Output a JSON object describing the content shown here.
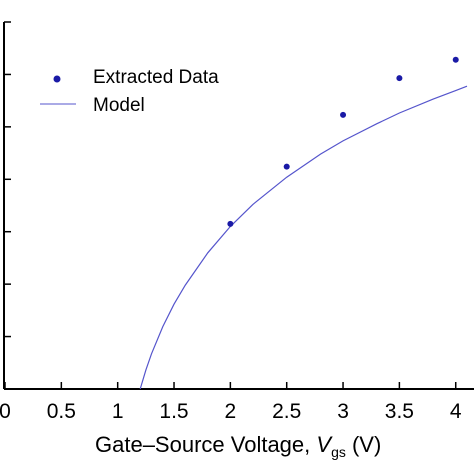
{
  "chart_data": {
    "type": "scatter",
    "title": "",
    "xlabel": {
      "prefix": "Gate–Source Voltage, ",
      "symbol": "V",
      "subscript": "gs",
      "unit": " (V)"
    },
    "ylabel": "",
    "xlim": [
      0,
      4.1
    ],
    "ylim": [
      0,
      1.0
    ],
    "x_ticks": [
      "0",
      "0.5",
      "1",
      "1.5",
      "2",
      "2.5",
      "3",
      "3.5",
      "4"
    ],
    "y_tick_values": [
      0.0,
      0.1429,
      0.2857,
      0.4286,
      0.5714,
      0.7143,
      0.8571,
      1.0
    ],
    "grid": false,
    "legend_position": "top-left",
    "series": [
      {
        "name": "Extracted Data",
        "kind": "scatter",
        "color": "#1a1aa6",
        "x": [
          2.0,
          2.5,
          3.0,
          3.5,
          4.0
        ],
        "y": [
          0.45,
          0.606,
          0.747,
          0.847,
          0.897
        ]
      },
      {
        "name": "Model",
        "kind": "line",
        "color": "#5555cc",
        "x": [
          1.2,
          1.25,
          1.3,
          1.4,
          1.5,
          1.6,
          1.8,
          2.0,
          2.2,
          2.5,
          2.8,
          3.0,
          3.3,
          3.5,
          3.8,
          4.0,
          4.1
        ],
        "y": [
          0.0,
          0.052,
          0.096,
          0.17,
          0.231,
          0.283,
          0.371,
          0.443,
          0.503,
          0.577,
          0.64,
          0.676,
          0.723,
          0.752,
          0.79,
          0.813,
          0.825
        ]
      }
    ]
  }
}
